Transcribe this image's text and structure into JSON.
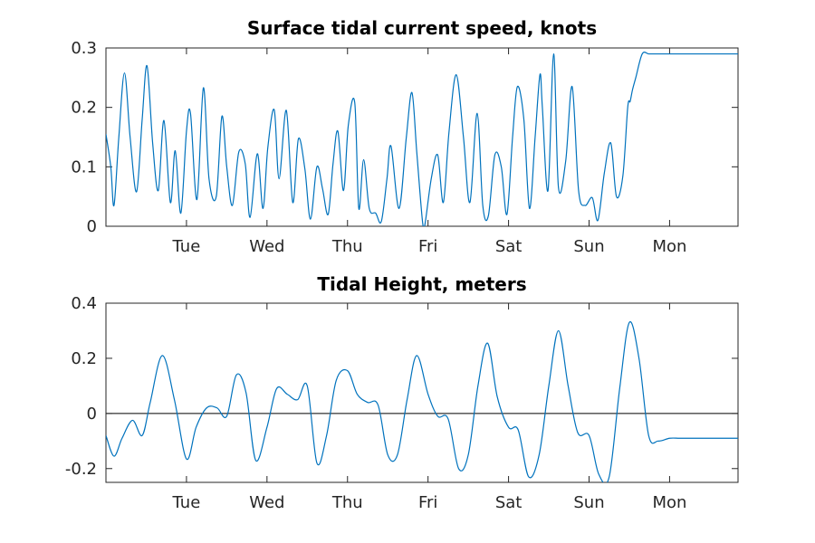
{
  "chart_data": [
    {
      "type": "line",
      "title": "Surface tidal current speed, knots",
      "xlabel": "",
      "ylabel": "",
      "x_domain": [
        0,
        7.85
      ],
      "xticks": [
        {
          "label": "Tue",
          "value": 1
        },
        {
          "label": "Wed",
          "value": 2
        },
        {
          "label": "Thu",
          "value": 3
        },
        {
          "label": "Fri",
          "value": 4
        },
        {
          "label": "Sat",
          "value": 5
        },
        {
          "label": "Sun",
          "value": 6
        },
        {
          "label": "Mon",
          "value": 7
        }
      ],
      "ylim": [
        0,
        0.3
      ],
      "yticks": [
        {
          "label": "0",
          "value": 0
        },
        {
          "label": "0.1",
          "value": 0.1
        },
        {
          "label": "0.2",
          "value": 0.2
        },
        {
          "label": "0.3",
          "value": 0.3
        }
      ],
      "zero_line": false,
      "series": [
        {
          "color": "#0072bd",
          "x": [
            0,
            0.06,
            0.1,
            0.16,
            0.23,
            0.3,
            0.38,
            0.45,
            0.51,
            0.58,
            0.65,
            0.72,
            0.8,
            0.86,
            0.93,
            1.0,
            1.05,
            1.13,
            1.21,
            1.28,
            1.37,
            1.44,
            1.5,
            1.57,
            1.65,
            1.73,
            1.79,
            1.88,
            1.95,
            2.01,
            2.09,
            2.15,
            2.24,
            2.32,
            2.39,
            2.47,
            2.54,
            2.62,
            2.69,
            2.76,
            2.82,
            2.88,
            2.95,
            3.01,
            3.09,
            3.14,
            3.2,
            3.27,
            3.35,
            3.42,
            3.49,
            3.54,
            3.64,
            3.73,
            3.8,
            3.86,
            3.93,
            3.96,
            4.04,
            4.12,
            4.19,
            4.26,
            4.35,
            4.44,
            4.52,
            4.61,
            4.68,
            4.75,
            4.83,
            4.91,
            4.98,
            5.05,
            5.11,
            5.19,
            5.26,
            5.33,
            5.39,
            5.42,
            5.49,
            5.56,
            5.62,
            5.71,
            5.79,
            5.87,
            5.95,
            6.04,
            6.11,
            6.19,
            6.27,
            6.34,
            6.42,
            6.48,
            6.51,
            6.54,
            6.58,
            6.66,
            6.74,
            6.81,
            6.88,
            6.95,
            7.02,
            7.09,
            7.16,
            7.24,
            7.31,
            7.38,
            7.42,
            7.46,
            7.53,
            7.61,
            7.69,
            7.77,
            7.85
          ],
          "y": [
            0.155,
            0.1,
            0.035,
            0.15,
            0.258,
            0.15,
            0.058,
            0.18,
            0.27,
            0.14,
            0.06,
            0.178,
            0.04,
            0.127,
            0.022,
            0.16,
            0.19,
            0.045,
            0.233,
            0.08,
            0.05,
            0.185,
            0.1,
            0.035,
            0.125,
            0.105,
            0.015,
            0.122,
            0.03,
            0.132,
            0.196,
            0.08,
            0.195,
            0.04,
            0.147,
            0.097,
            0.012,
            0.1,
            0.063,
            0.02,
            0.105,
            0.16,
            0.06,
            0.17,
            0.208,
            0.03,
            0.112,
            0.03,
            0.022,
            0.008,
            0.08,
            0.135,
            0.03,
            0.149,
            0.225,
            0.125,
            0.01,
            0.002,
            0.08,
            0.12,
            0.04,
            0.158,
            0.255,
            0.15,
            0.04,
            0.19,
            0.035,
            0.018,
            0.12,
            0.1,
            0.02,
            0.15,
            0.235,
            0.18,
            0.03,
            0.15,
            0.255,
            0.2,
            0.06,
            0.29,
            0.065,
            0.11,
            0.235,
            0.06,
            0.035,
            0.048,
            0.01,
            0.09,
            0.14,
            0.05,
            0.085,
            0.2,
            0.21,
            0.23,
            0.25,
            0.29,
            0.29,
            0.29,
            0.29,
            0.29,
            0.29,
            0.29,
            0.29,
            0.29,
            0.29,
            0.29,
            0.29,
            0.29,
            0.29,
            0.29,
            0.29,
            0.29,
            0.29
          ]
        }
      ]
    },
    {
      "type": "line",
      "title": "Tidal Height, meters",
      "xlabel": "",
      "ylabel": "",
      "x_domain": [
        0,
        7.85
      ],
      "xticks": [
        {
          "label": "Tue",
          "value": 1
        },
        {
          "label": "Wed",
          "value": 2
        },
        {
          "label": "Thu",
          "value": 3
        },
        {
          "label": "Fri",
          "value": 4
        },
        {
          "label": "Sat",
          "value": 5
        },
        {
          "label": "Sun",
          "value": 6
        },
        {
          "label": "Mon",
          "value": 7
        }
      ],
      "ylim": [
        -0.25,
        0.4
      ],
      "yticks": [
        {
          "label": "-0.2",
          "value": -0.2
        },
        {
          "label": "0",
          "value": 0
        },
        {
          "label": "0.2",
          "value": 0.2
        },
        {
          "label": "0.4",
          "value": 0.4
        }
      ],
      "zero_line": true,
      "series": [
        {
          "color": "#0072bd",
          "x": [
            0,
            0.1,
            0.2,
            0.33,
            0.45,
            0.55,
            0.7,
            0.85,
            1.0,
            1.12,
            1.25,
            1.38,
            1.5,
            1.62,
            1.74,
            1.86,
            2.0,
            2.12,
            2.25,
            2.38,
            2.5,
            2.62,
            2.74,
            2.86,
            3.0,
            3.12,
            3.25,
            3.38,
            3.5,
            3.62,
            3.74,
            3.86,
            4.0,
            4.12,
            4.25,
            4.38,
            4.5,
            4.62,
            4.74,
            4.86,
            5.0,
            5.12,
            5.25,
            5.38,
            5.5,
            5.62,
            5.74,
            5.86,
            6.0,
            6.12,
            6.25,
            6.38,
            6.5,
            6.62,
            6.74,
            6.86,
            7.0,
            7.12,
            7.25,
            7.38,
            7.5,
            7.62,
            7.74,
            7.85
          ],
          "y": [
            -0.08,
            -0.155,
            -0.09,
            -0.025,
            -0.08,
            0.04,
            0.21,
            0.05,
            -0.165,
            -0.05,
            0.02,
            0.02,
            -0.01,
            0.14,
            0.075,
            -0.17,
            -0.05,
            0.09,
            0.07,
            0.05,
            0.1,
            -0.18,
            -0.08,
            0.12,
            0.155,
            0.07,
            0.04,
            0.03,
            -0.15,
            -0.15,
            0.05,
            0.21,
            0.07,
            -0.01,
            -0.02,
            -0.2,
            -0.15,
            0.1,
            0.255,
            0.06,
            -0.05,
            -0.06,
            -0.23,
            -0.15,
            0.1,
            0.3,
            0.1,
            -0.07,
            -0.08,
            -0.22,
            -0.23,
            0.09,
            0.33,
            0.2,
            -0.08,
            -0.1,
            -0.09,
            -0.09,
            -0.09,
            -0.09,
            -0.09,
            -0.09,
            -0.09,
            -0.09
          ]
        }
      ]
    }
  ]
}
